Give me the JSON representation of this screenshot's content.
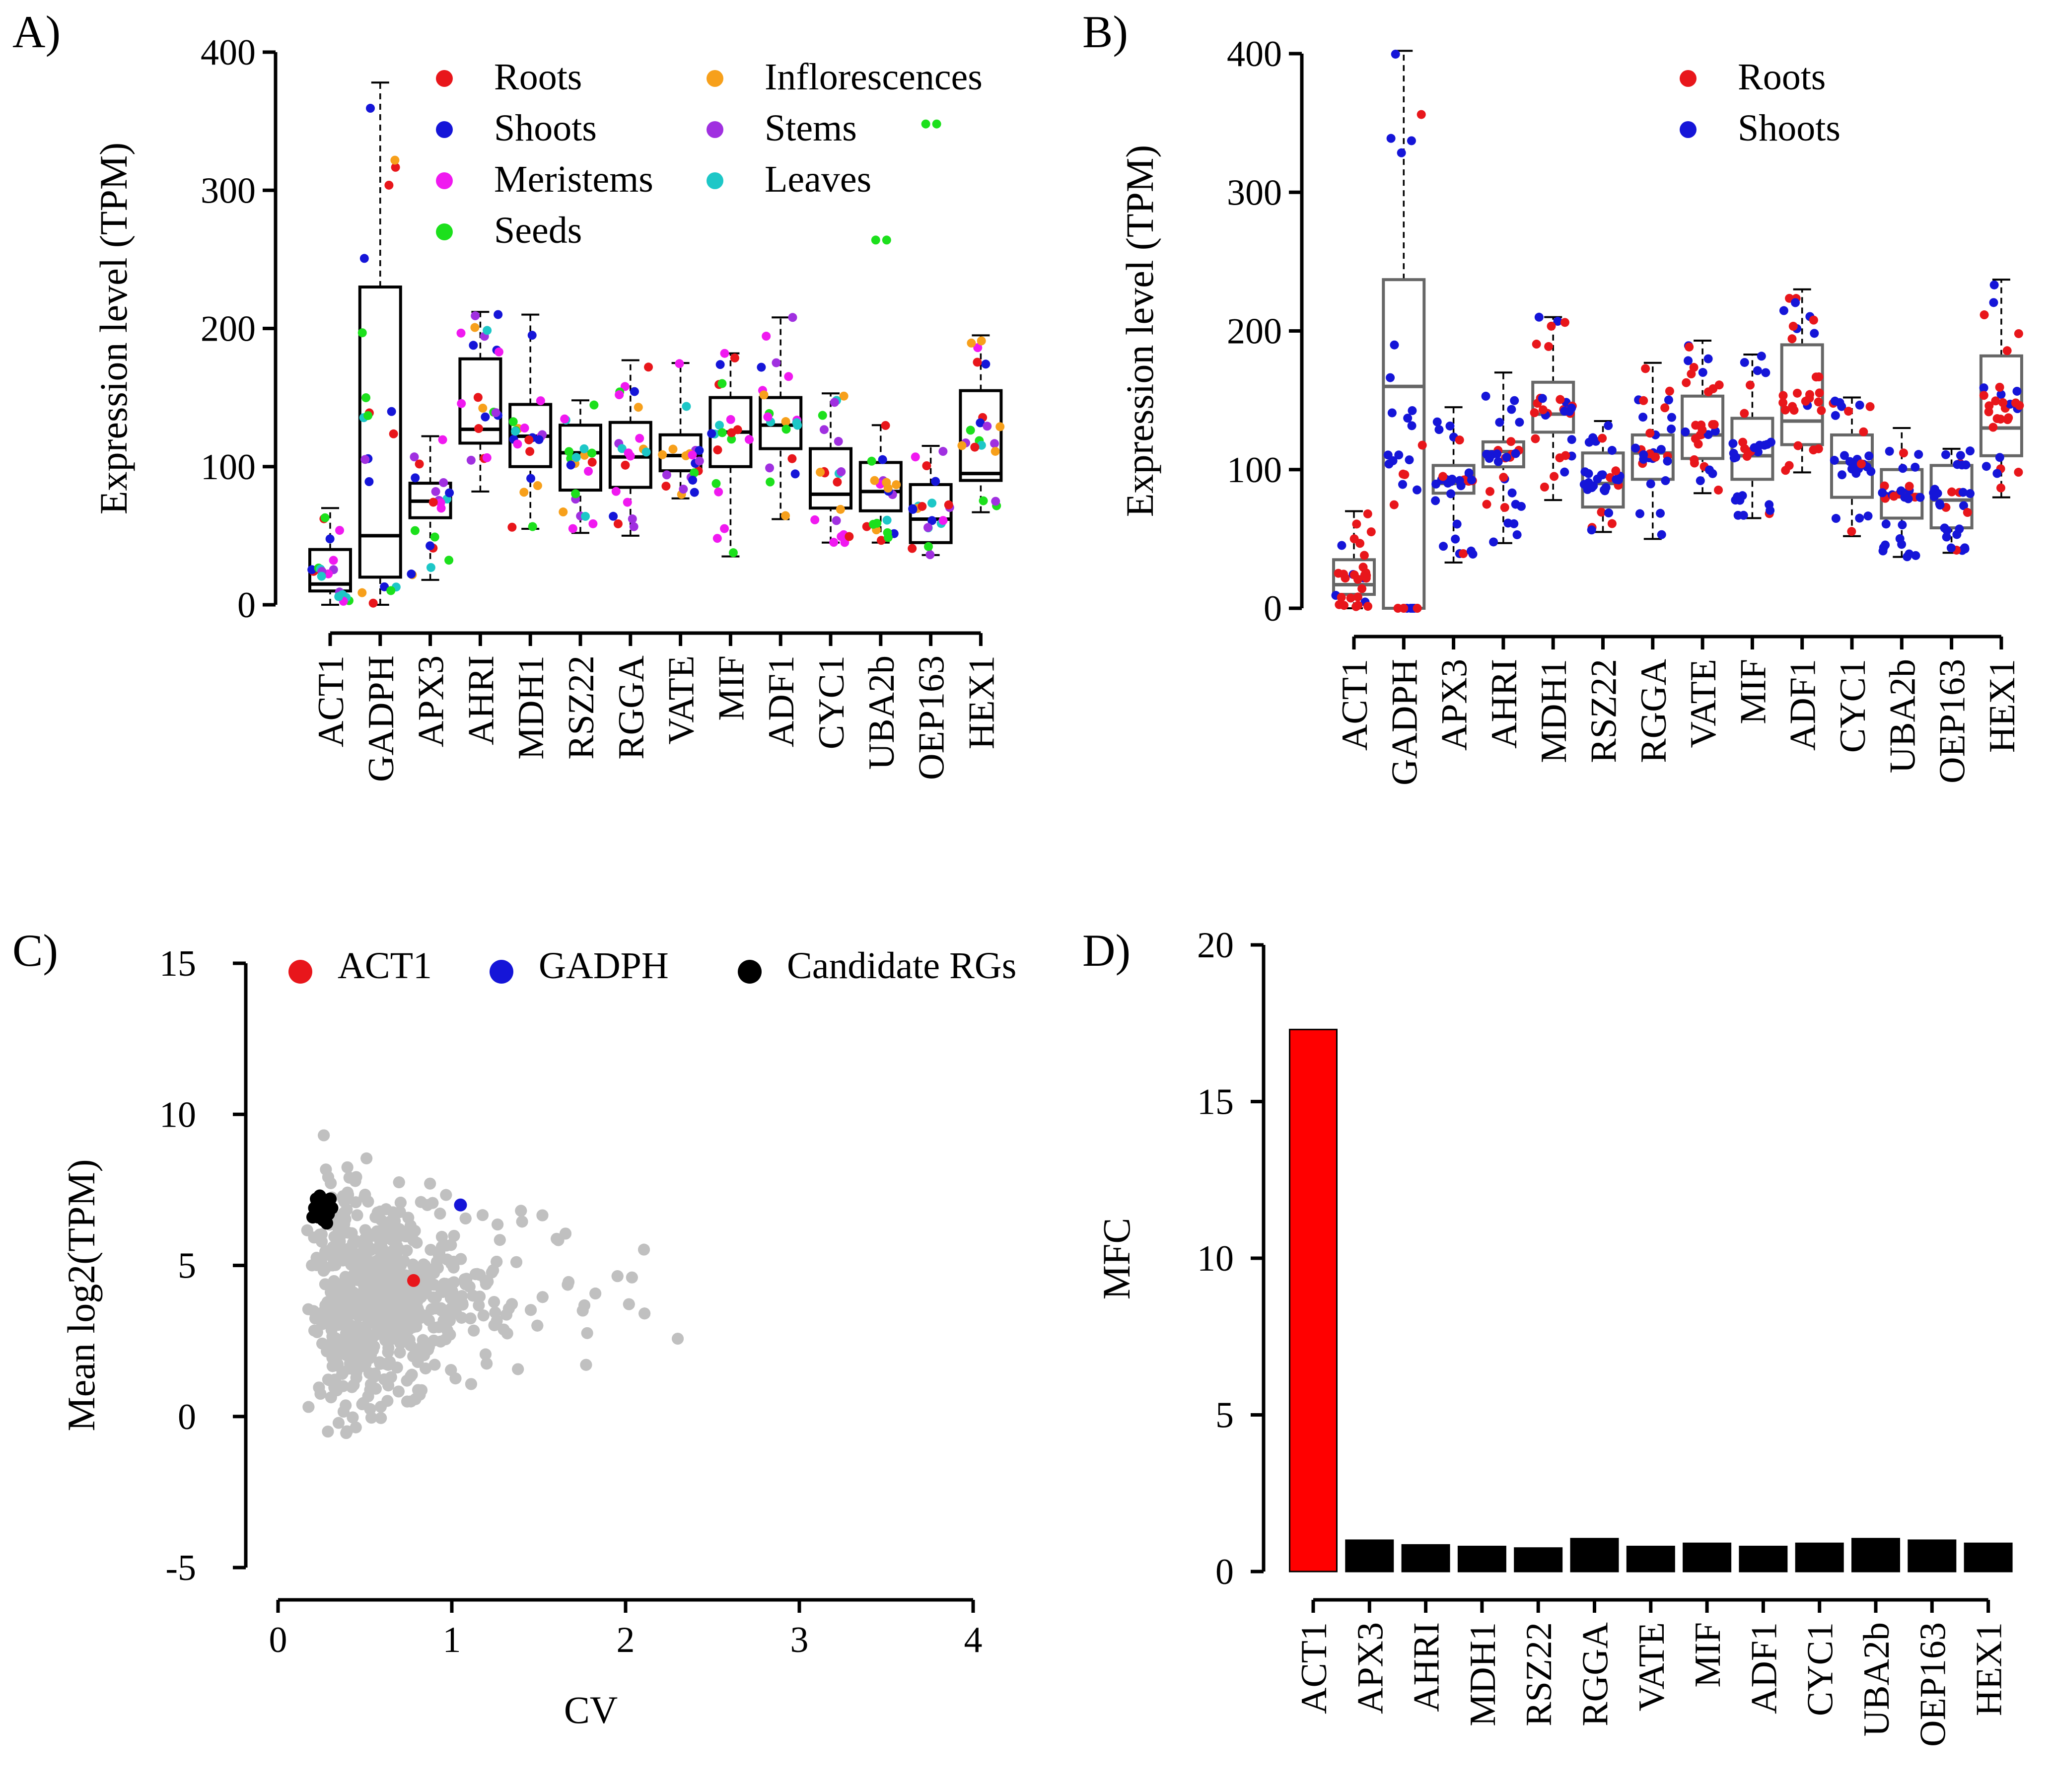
{
  "figure": {
    "panels": [
      "A)",
      "B)",
      "C)",
      "D)"
    ]
  },
  "chart_data": [
    {
      "id": "A",
      "type": "box",
      "panel_label": "A)",
      "title": "",
      "xlabel": "",
      "ylabel": "Expression level (TPM)",
      "ylim": [
        0,
        400
      ],
      "yticks": [
        0,
        100,
        200,
        300,
        400
      ],
      "legend_position": "top-right",
      "categories": [
        "ACT1",
        "GADPH",
        "APX3",
        "AHRI",
        "MDH1",
        "RSZ22",
        "RGGA",
        "VATE",
        "MIF",
        "ADF1",
        "CYC1",
        "UBA2b",
        "OEP163",
        "HEX1"
      ],
      "legend": [
        {
          "name": "Roots",
          "color": "#e8161b"
        },
        {
          "name": "Shoots",
          "color": "#1515d8"
        },
        {
          "name": "Meristems",
          "color": "#f019f0"
        },
        {
          "name": "Seeds",
          "color": "#1ce01c"
        },
        {
          "name": "Inflorescences",
          "color": "#f7a01b"
        },
        {
          "name": "Stems",
          "color": "#a030e0"
        },
        {
          "name": "Leaves",
          "color": "#1dc7c7"
        }
      ],
      "boxes": [
        {
          "q1": 10,
          "median": 15,
          "q3": 40,
          "whisker_low": 0,
          "whisker_high": 70
        },
        {
          "q1": 20,
          "median": 50,
          "q3": 230,
          "whisker_low": 0,
          "whisker_high": 378
        },
        {
          "q1": 63,
          "median": 75,
          "q3": 88,
          "whisker_low": 18,
          "whisker_high": 122
        },
        {
          "q1": 117,
          "median": 127,
          "q3": 178,
          "whisker_low": 82,
          "whisker_high": 212
        },
        {
          "q1": 100,
          "median": 122,
          "q3": 145,
          "whisker_low": 55,
          "whisker_high": 210
        },
        {
          "q1": 83,
          "median": 110,
          "q3": 130,
          "whisker_low": 52,
          "whisker_high": 148
        },
        {
          "q1": 85,
          "median": 107,
          "q3": 132,
          "whisker_low": 50,
          "whisker_high": 177
        },
        {
          "q1": 97,
          "median": 108,
          "q3": 123,
          "whisker_low": 77,
          "whisker_high": 175
        },
        {
          "q1": 100,
          "median": 125,
          "q3": 150,
          "whisker_low": 35,
          "whisker_high": 182
        },
        {
          "q1": 113,
          "median": 130,
          "q3": 150,
          "whisker_low": 62,
          "whisker_high": 208
        },
        {
          "q1": 70,
          "median": 80,
          "q3": 113,
          "whisker_low": 45,
          "whisker_high": 153
        },
        {
          "q1": 68,
          "median": 82,
          "q3": 103,
          "whisker_low": 45,
          "whisker_high": 130
        },
        {
          "q1": 45,
          "median": 62,
          "q3": 87,
          "whisker_low": 36,
          "whisker_high": 115
        },
        {
          "q1": 90,
          "median": 95,
          "q3": 155,
          "whisker_low": 67,
          "whisker_high": 195
        }
      ],
      "outliers": [
        {
          "category": "OEP163",
          "value": 348,
          "group": "Seeds"
        },
        {
          "category": "UBA2b",
          "value": 264,
          "group": "Seeds"
        }
      ],
      "points_per_category": 20
    },
    {
      "id": "B",
      "type": "box",
      "panel_label": "B)",
      "title": "",
      "xlabel": "",
      "ylabel": "Expression level (TPM)",
      "ylim": [
        0,
        400
      ],
      "yticks": [
        0,
        100,
        200,
        300,
        400
      ],
      "legend_position": "top-right",
      "categories": [
        "ACT1",
        "GADPH",
        "APX3",
        "AHRI",
        "MDH1",
        "RSZ22",
        "RGGA",
        "VATE",
        "MIF",
        "ADF1",
        "CYC1",
        "UBA2b",
        "OEP163",
        "HEX1"
      ],
      "legend": [
        {
          "name": "Roots",
          "color": "#e8161b"
        },
        {
          "name": "Shoots",
          "color": "#1515d8"
        }
      ],
      "boxes": [
        {
          "q1": 10,
          "median": 17,
          "q3": 35,
          "whisker_low": 0,
          "whisker_high": 70,
          "dominant": "Roots"
        },
        {
          "q1": 0,
          "median": 160,
          "q3": 237,
          "whisker_low": 0,
          "whisker_high": 402,
          "dominant": "Shoots"
        },
        {
          "q1": 83,
          "median": 90,
          "q3": 103,
          "whisker_low": 33,
          "whisker_high": 145,
          "dominant": "Shoots"
        },
        {
          "q1": 102,
          "median": 113,
          "q3": 120,
          "whisker_low": 47,
          "whisker_high": 170,
          "dominant": "Shoots"
        },
        {
          "q1": 127,
          "median": 140,
          "q3": 163,
          "whisker_low": 78,
          "whisker_high": 210,
          "dominant": "Roots"
        },
        {
          "q1": 73,
          "median": 90,
          "q3": 112,
          "whisker_low": 55,
          "whisker_high": 135,
          "dominant": "Shoots"
        },
        {
          "q1": 93,
          "median": 112,
          "q3": 125,
          "whisker_low": 50,
          "whisker_high": 177,
          "dominant": "Shoots"
        },
        {
          "q1": 108,
          "median": 125,
          "q3": 153,
          "whisker_low": 83,
          "whisker_high": 193,
          "dominant": "Roots"
        },
        {
          "q1": 93,
          "median": 110,
          "q3": 137,
          "whisker_low": 65,
          "whisker_high": 183,
          "dominant": "Shoots"
        },
        {
          "q1": 118,
          "median": 135,
          "q3": 190,
          "whisker_low": 98,
          "whisker_high": 230,
          "dominant": "Roots"
        },
        {
          "q1": 80,
          "median": 105,
          "q3": 125,
          "whisker_low": 52,
          "whisker_high": 152,
          "dominant": "Shoots"
        },
        {
          "q1": 65,
          "median": 82,
          "q3": 100,
          "whisker_low": 37,
          "whisker_high": 130,
          "dominant": "Shoots"
        },
        {
          "q1": 58,
          "median": 78,
          "q3": 103,
          "whisker_low": 40,
          "whisker_high": 115,
          "dominant": "Shoots"
        },
        {
          "q1": 110,
          "median": 130,
          "q3": 182,
          "whisker_low": 80,
          "whisker_high": 237,
          "dominant": "Roots"
        }
      ],
      "points_per_category": 30
    },
    {
      "id": "C",
      "type": "scatter",
      "panel_label": "C)",
      "title": "",
      "xlabel": "CV",
      "ylabel": "Mean log2(TPM)",
      "xlim": [
        0,
        4
      ],
      "ylim": [
        -5,
        15
      ],
      "xticks": [
        0,
        1,
        2,
        3,
        4
      ],
      "yticks": [
        -5,
        0,
        5,
        10,
        15
      ],
      "legend_position": "top",
      "legend": [
        {
          "name": "ACT1",
          "color": "#e8161b"
        },
        {
          "name": "GADPH",
          "color": "#1515d8"
        },
        {
          "name": "Candidate RGs",
          "color": "#000000"
        }
      ],
      "highlight_points": [
        {
          "name": "ACT1",
          "x": 0.78,
          "y": 4.5
        },
        {
          "name": "GADPH",
          "x": 1.05,
          "y": 7.0
        }
      ],
      "candidate_points": [
        {
          "x": 0.22,
          "y": 7.2
        },
        {
          "x": 0.25,
          "y": 6.9
        },
        {
          "x": 0.27,
          "y": 7.1
        },
        {
          "x": 0.23,
          "y": 6.6
        },
        {
          "x": 0.29,
          "y": 6.7
        },
        {
          "x": 0.21,
          "y": 6.9
        },
        {
          "x": 0.26,
          "y": 6.5
        },
        {
          "x": 0.3,
          "y": 7.2
        },
        {
          "x": 0.24,
          "y": 7.3
        },
        {
          "x": 0.28,
          "y": 6.4
        },
        {
          "x": 0.2,
          "y": 6.6
        },
        {
          "x": 0.31,
          "y": 6.9
        }
      ],
      "background_point_color": "#c0c0c0",
      "background_point_count": 1800
    },
    {
      "id": "D",
      "type": "bar",
      "panel_label": "D)",
      "title": "",
      "xlabel": "",
      "ylabel": "MFC",
      "ylim": [
        0,
        20
      ],
      "yticks": [
        0,
        5,
        10,
        15,
        20
      ],
      "categories": [
        "ACT1",
        "APX3",
        "AHRI",
        "MDH1",
        "RSZ22",
        "RGGA",
        "VATE",
        "MIF",
        "ADF1",
        "CYC1",
        "UBA2b",
        "OEP163",
        "HEX1"
      ],
      "values": [
        17.3,
        1.0,
        0.85,
        0.8,
        0.75,
        1.05,
        0.8,
        0.9,
        0.8,
        0.9,
        1.05,
        1.0,
        0.9
      ],
      "colors": [
        "#ff0000",
        "#000000",
        "#000000",
        "#000000",
        "#000000",
        "#000000",
        "#000000",
        "#000000",
        "#000000",
        "#000000",
        "#000000",
        "#000000",
        "#000000"
      ]
    }
  ]
}
